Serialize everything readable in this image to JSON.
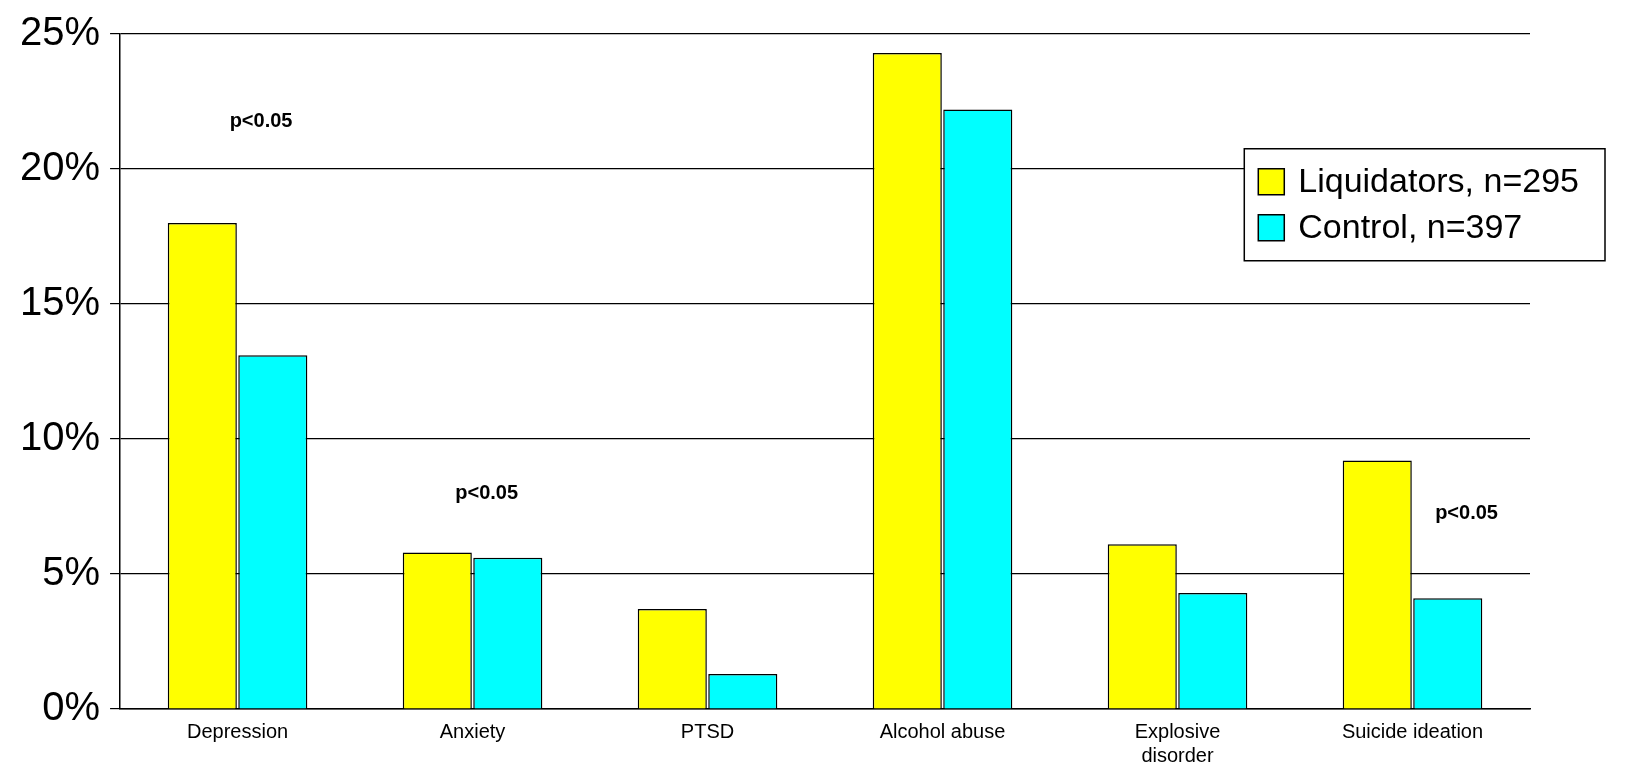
{
  "chart_data": {
    "type": "bar",
    "categories": [
      "Depression",
      "Anxiety",
      "PTSD",
      "Alcohol abuse",
      "Explosive disorder",
      "Suicide ideation"
    ],
    "series": [
      {
        "name": "Liquidators, n=295",
        "color": "#ffff00",
        "values": [
          18,
          5.8,
          3.7,
          24.3,
          6.1,
          9.2
        ]
      },
      {
        "name": "Control, n=397",
        "color": "#00ffff",
        "values": [
          13.1,
          5.6,
          1.3,
          22.2,
          4.3,
          4.1
        ]
      }
    ],
    "ylim": [
      0,
      25
    ],
    "yticks": [
      {
        "value": 0,
        "label": "0%"
      },
      {
        "value": 5,
        "label": "5%"
      },
      {
        "value": 10,
        "label": "10%"
      },
      {
        "value": 15,
        "label": "15%"
      },
      {
        "value": 20,
        "label": "20%"
      },
      {
        "value": 25,
        "label": "25%"
      }
    ],
    "grid": "y",
    "legend": "right",
    "annotations": [
      "p<0.05",
      "p<0.05",
      "p<0.05"
    ]
  }
}
